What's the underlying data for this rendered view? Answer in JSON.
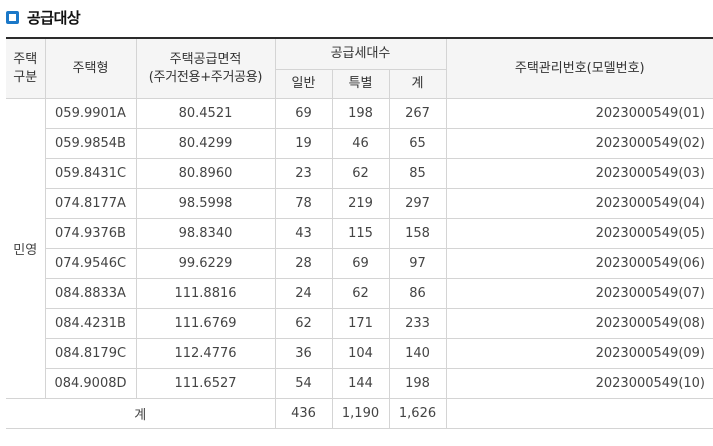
{
  "heading": {
    "title": "공급대상"
  },
  "headers": {
    "type_group": "주택\n구분",
    "housing_type": "주택형",
    "area": "주택공급면적\n(주거전용+주거공용)",
    "households": "공급세대수",
    "general": "일반",
    "special": "특별",
    "total": "계",
    "mgmt_no": "주택관리번호(모델번호)"
  },
  "group_label": "민영",
  "rows": [
    {
      "type": "059.9901A",
      "area": "80.4521",
      "general": "69",
      "special": "198",
      "total": "267",
      "mgmt": "2023000549(01)"
    },
    {
      "type": "059.9854B",
      "area": "80.4299",
      "general": "19",
      "special": "46",
      "total": "65",
      "mgmt": "2023000549(02)"
    },
    {
      "type": "059.8431C",
      "area": "80.8960",
      "general": "23",
      "special": "62",
      "total": "85",
      "mgmt": "2023000549(03)"
    },
    {
      "type": "074.8177A",
      "area": "98.5998",
      "general": "78",
      "special": "219",
      "total": "297",
      "mgmt": "2023000549(04)"
    },
    {
      "type": "074.9376B",
      "area": "98.8340",
      "general": "43",
      "special": "115",
      "total": "158",
      "mgmt": "2023000549(05)"
    },
    {
      "type": "074.9546C",
      "area": "99.6229",
      "general": "28",
      "special": "69",
      "total": "97",
      "mgmt": "2023000549(06)"
    },
    {
      "type": "084.8833A",
      "area": "111.8816",
      "general": "24",
      "special": "62",
      "total": "86",
      "mgmt": "2023000549(07)"
    },
    {
      "type": "084.4231B",
      "area": "111.6769",
      "general": "62",
      "special": "171",
      "total": "233",
      "mgmt": "2023000549(08)"
    },
    {
      "type": "084.8179C",
      "area": "112.4776",
      "general": "36",
      "special": "104",
      "total": "140",
      "mgmt": "2023000549(09)"
    },
    {
      "type": "084.9008D",
      "area": "111.6527",
      "general": "54",
      "special": "144",
      "total": "198",
      "mgmt": "2023000549(10)"
    }
  ],
  "totals": {
    "label": "계",
    "general": "436",
    "special": "1,190",
    "total": "1,626"
  }
}
